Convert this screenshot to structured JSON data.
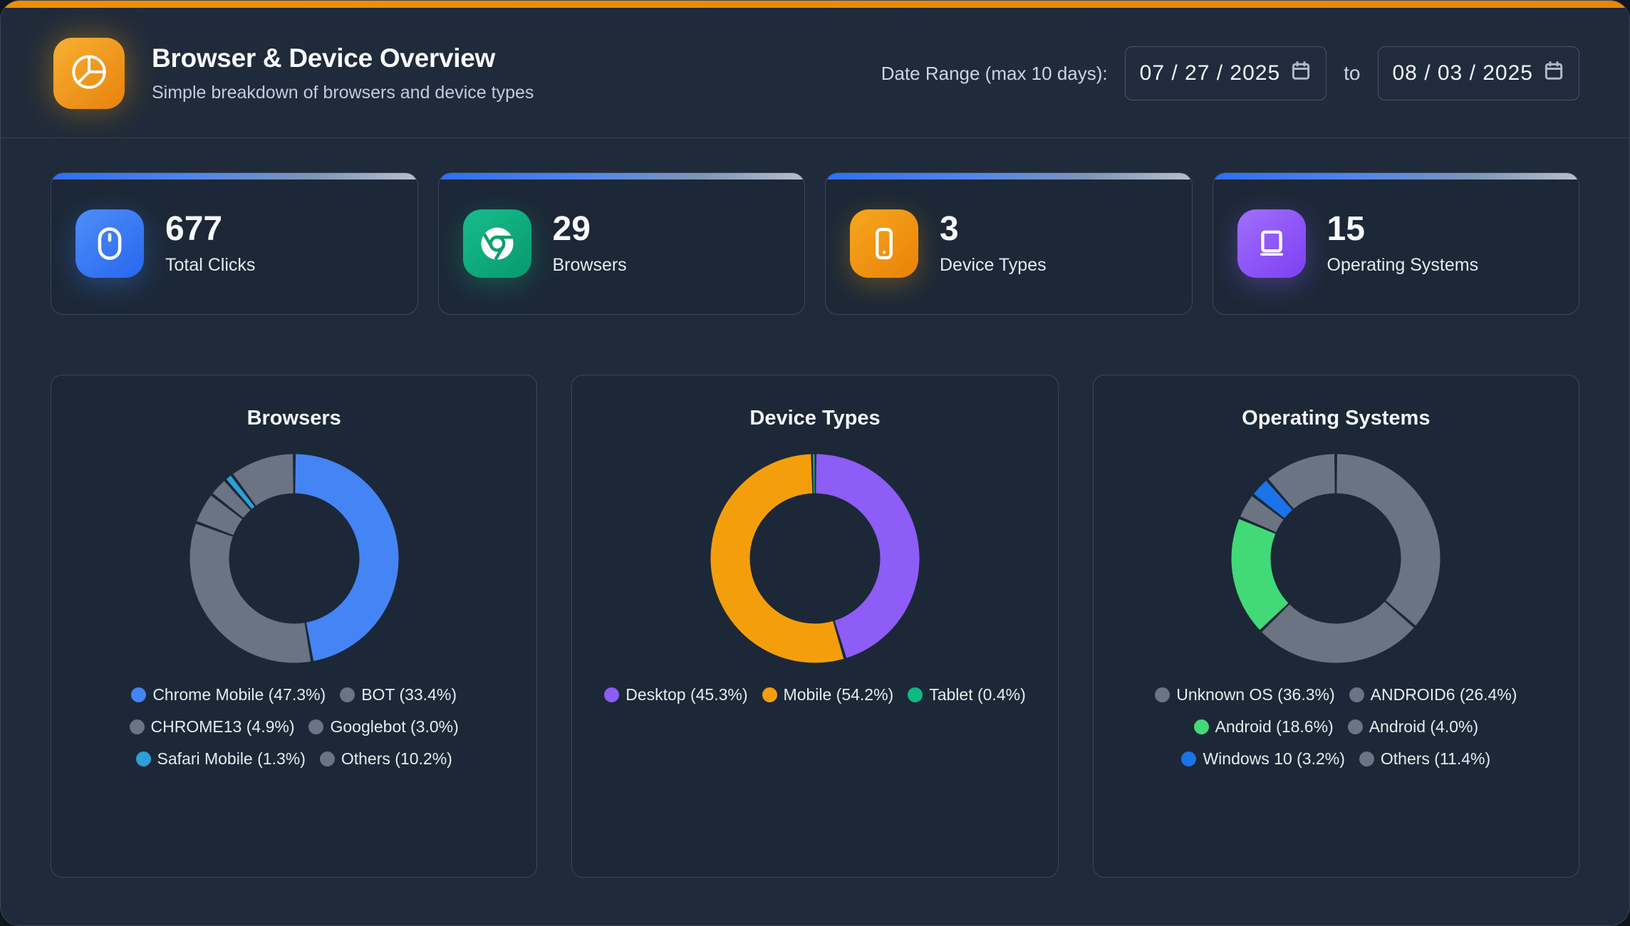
{
  "page": {
    "title": "Browser & Device Overview",
    "subtitle": "Simple breakdown of browsers and device types"
  },
  "date_range": {
    "label": "Date Range (max 10 days):",
    "start_value": "07/27/2025",
    "separator": "to",
    "end_value": "08/03/2025"
  },
  "stats": {
    "cards": [
      {
        "value": "677",
        "label": "Total Clicks",
        "icon": "mouse-icon",
        "color": "#2e6bf0"
      },
      {
        "value": "29",
        "label": "Browsers",
        "icon": "chrome-browser-icon",
        "color": "#10a56f"
      },
      {
        "value": "3",
        "label": "Device Types",
        "icon": "smartphone-icon",
        "color": "#ef8e06"
      },
      {
        "value": "15",
        "label": "Operating Systems",
        "icon": "laptop-icon",
        "color": "#8b4ef5"
      }
    ]
  },
  "charts": [
    {
      "title": "Browsers",
      "chart_data": {
        "type": "pie",
        "donut": true,
        "labels": [
          "Chrome Mobile",
          "BOT",
          "CHROME13",
          "Googlebot",
          "Safari Mobile",
          "Others"
        ],
        "values": [
          47.3,
          33.4,
          4.9,
          3.0,
          1.3,
          10.2
        ],
        "colors": [
          "#4584f4",
          "#6b7482",
          "#6b7482",
          "#6b7482",
          "#2d9fd8",
          "#6b7482"
        ],
        "legend_position": "bottom",
        "start_angle_deg": 0,
        "direction": "clockwise"
      }
    },
    {
      "title": "Device Types",
      "chart_data": {
        "type": "pie",
        "donut": true,
        "labels": [
          "Desktop",
          "Mobile",
          "Tablet"
        ],
        "values": [
          45.3,
          54.2,
          0.4
        ],
        "colors": [
          "#8e5cf6",
          "#f49e0c",
          "#10b981"
        ],
        "legend_position": "bottom",
        "start_angle_deg": 0,
        "direction": "clockwise"
      }
    },
    {
      "title": "Operating Systems",
      "chart_data": {
        "type": "pie",
        "donut": true,
        "labels": [
          "Unknown OS",
          "ANDROID6",
          "Android",
          "Android",
          "Windows 10",
          "Others"
        ],
        "values": [
          36.3,
          26.4,
          18.6,
          4.0,
          3.2,
          11.4
        ],
        "colors": [
          "#6b7482",
          "#6b7482",
          "#42d977",
          "#6b7482",
          "#1a73e8",
          "#6b7482"
        ],
        "legend_position": "bottom",
        "start_angle_deg": 0,
        "direction": "clockwise"
      }
    }
  ],
  "theme": {
    "top_bar_color": "#e8890f",
    "page_background": "#1f2a3a",
    "card_background": "#1c2837",
    "card_border": "#3b4757",
    "stat_topbar_gradient": [
      "#2f6ff2",
      "#b6bfcb"
    ]
  }
}
